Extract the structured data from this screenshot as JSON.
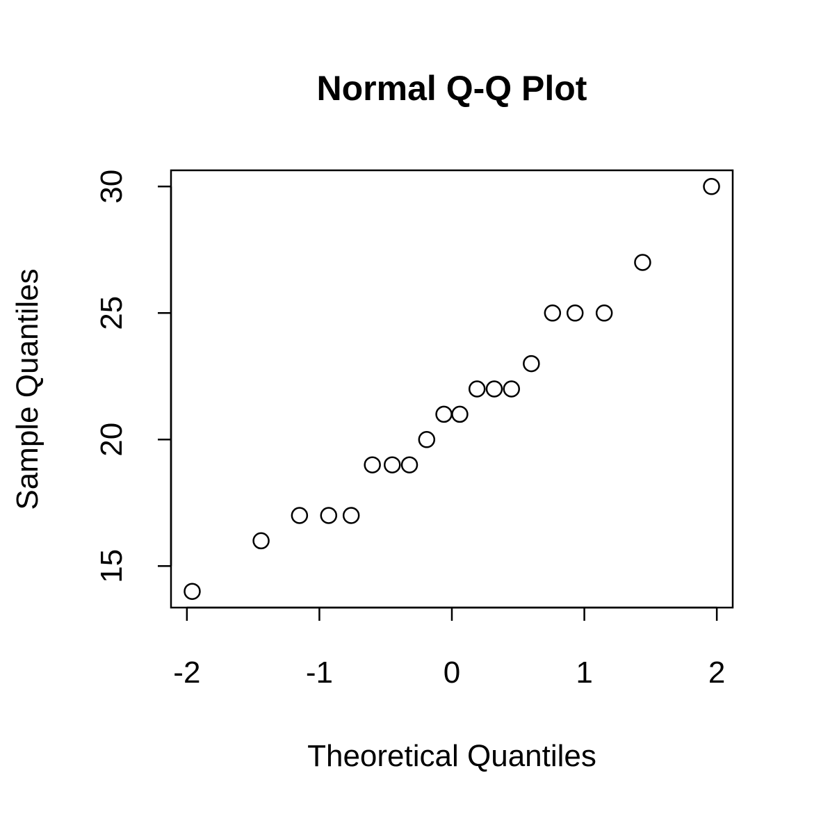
{
  "chart_data": {
    "type": "scatter",
    "title": "Normal Q-Q Plot",
    "x_label": "Theoretical Quantiles",
    "y_label": "Sample Quantiles",
    "x": [
      -1.96,
      -1.44,
      -1.15,
      -0.93,
      -0.76,
      -0.6,
      -0.45,
      -0.32,
      -0.19,
      -0.06,
      0.06,
      0.19,
      0.32,
      0.45,
      0.6,
      0.76,
      0.93,
      1.15,
      1.44,
      1.96
    ],
    "values": [
      14,
      16,
      17,
      17,
      17,
      19,
      19,
      19,
      20,
      21,
      21,
      22,
      22,
      22,
      23,
      25,
      25,
      25,
      27,
      30
    ],
    "color": "#000000",
    "xlim": [
      -2.12,
      2.12
    ],
    "ylim": [
      13.36,
      30.64
    ],
    "xticks": [
      -2,
      -1,
      0,
      1,
      2
    ],
    "yticks": [
      15,
      20,
      25,
      30
    ]
  }
}
